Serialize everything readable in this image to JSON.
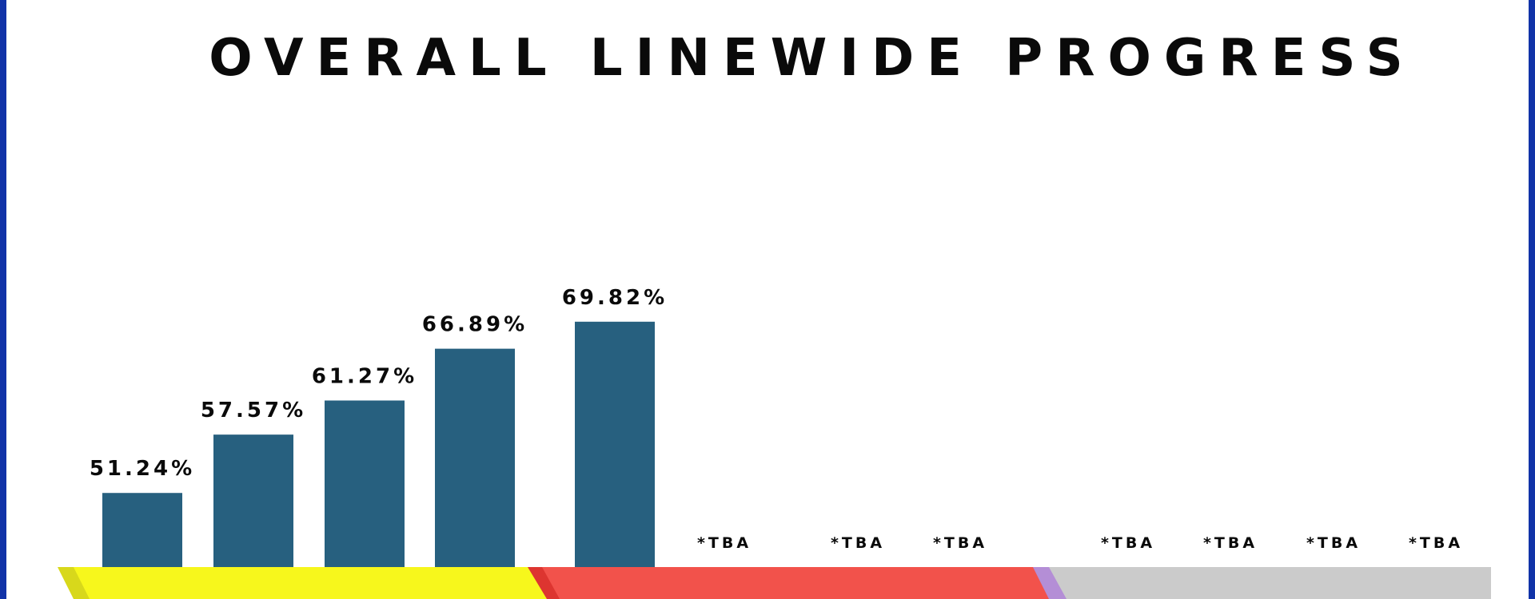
{
  "title": "OVERALL LINEWIDE PROGRESS",
  "colors": {
    "frame": "#1133a8",
    "bar": "#27607f",
    "band_yellow": "#f7f71c",
    "band_yellow_dark": "#d8d81b",
    "band_red": "#f2524b",
    "band_red_dark": "#dd3530",
    "band_gray": "#cbcbcb",
    "band_purple": "#b48ed6",
    "text": "#0a0a0a"
  },
  "chart_data": {
    "type": "bar",
    "title": "OVERALL LINEWIDE PROGRESS",
    "xlabel": "",
    "ylabel": "",
    "unit": "%",
    "grid": false,
    "legend": "none",
    "categories": [
      "",
      "",
      "",
      "",
      "",
      "",
      "",
      "",
      "",
      "",
      "",
      ""
    ],
    "values": [
      51.24,
      57.57,
      61.27,
      66.89,
      69.82,
      null,
      null,
      null,
      null,
      null,
      null,
      null
    ],
    "labels": [
      "51.24%",
      "57.57%",
      "61.27%",
      "66.89%",
      "69.82%",
      "*TBA",
      "*TBA",
      "*TBA",
      "*TBA",
      "*TBA",
      "*TBA",
      "*TBA"
    ]
  }
}
